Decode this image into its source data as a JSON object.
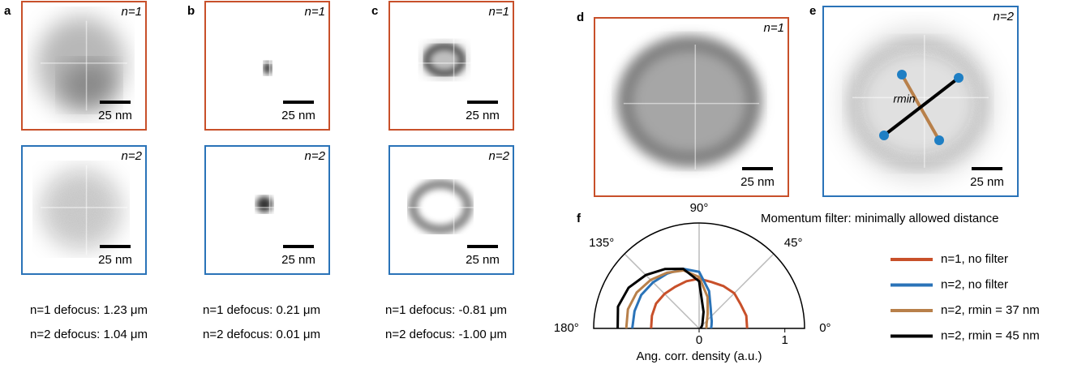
{
  "panels": [
    {
      "label": "a",
      "images": [
        {
          "tag": "n=1",
          "scale": "25 nm"
        },
        {
          "tag": "n=2",
          "scale": "25 nm"
        }
      ],
      "defocus": [
        "n=1 defocus: 1.23 μm",
        "n=2 defocus: 1.04 μm"
      ]
    },
    {
      "label": "b",
      "images": [
        {
          "tag": "n=1",
          "scale": "25 nm"
        },
        {
          "tag": "n=2",
          "scale": "25 nm"
        }
      ],
      "defocus": [
        "n=1 defocus: 0.21 μm",
        "n=2 defocus: 0.01 μm"
      ]
    },
    {
      "label": "c",
      "images": [
        {
          "tag": "n=1",
          "scale": "25 nm"
        },
        {
          "tag": "n=2",
          "scale": "25 nm"
        }
      ],
      "defocus": [
        "n=1 defocus: -0.81 μm",
        "n=2 defocus: -1.00 μm"
      ]
    }
  ],
  "panel_d": {
    "label": "d",
    "tag": "n=1",
    "scale": "25 nm"
  },
  "panel_e": {
    "label": "e",
    "tag": "n=2",
    "scale": "25 nm",
    "annotation": "rmin"
  },
  "chart_data": {
    "type": "polar",
    "label": "f",
    "legend_title": "Momentum filter: minimally allowed distance",
    "x_label": "Ang. corr. density (a.u.)",
    "x": [
      0,
      15,
      30,
      45,
      60,
      75,
      90,
      105,
      120,
      135,
      150,
      165,
      180
    ],
    "rlim": [
      0,
      1.23
    ],
    "rticks": [
      0,
      1
    ],
    "thetaticks": [
      {
        "value": 0,
        "label": "0°"
      },
      {
        "value": 45,
        "label": "45°"
      },
      {
        "value": 90,
        "label": "90°"
      },
      {
        "value": 135,
        "label": "135°"
      },
      {
        "value": 180,
        "label": "180°"
      }
    ],
    "grid": true,
    "series": [
      {
        "name": "n=1, no filter",
        "color": "#c8502a",
        "label_color": "#c8502a",
        "values": [
          0.56,
          0.57,
          0.56,
          0.58,
          0.57,
          0.56,
          0.58,
          0.57,
          0.56,
          0.57,
          0.58,
          0.57,
          0.56
        ]
      },
      {
        "name": "n=2, no filter",
        "color": "#2a73b8",
        "label_color": "#2a73b8",
        "values": [
          0.14,
          0.15,
          0.17,
          0.2,
          0.27,
          0.45,
          0.66,
          0.72,
          0.74,
          0.76,
          0.78,
          0.78,
          0.78
        ]
      },
      {
        "name": "n=2, rmin = 37 nm",
        "color": "#b8804a",
        "label_color": "#2a73b8",
        "values": [
          0.08,
          0.09,
          0.1,
          0.13,
          0.2,
          0.38,
          0.6,
          0.7,
          0.75,
          0.8,
          0.84,
          0.86,
          0.85
        ]
      },
      {
        "name": "n=2, rmin = 45 nm",
        "color": "#000000",
        "label_color": "#2a73b8",
        "values": [
          0.02,
          0.02,
          0.03,
          0.05,
          0.08,
          0.2,
          0.55,
          0.72,
          0.8,
          0.88,
          0.95,
          0.98,
          0.95
        ]
      }
    ]
  }
}
